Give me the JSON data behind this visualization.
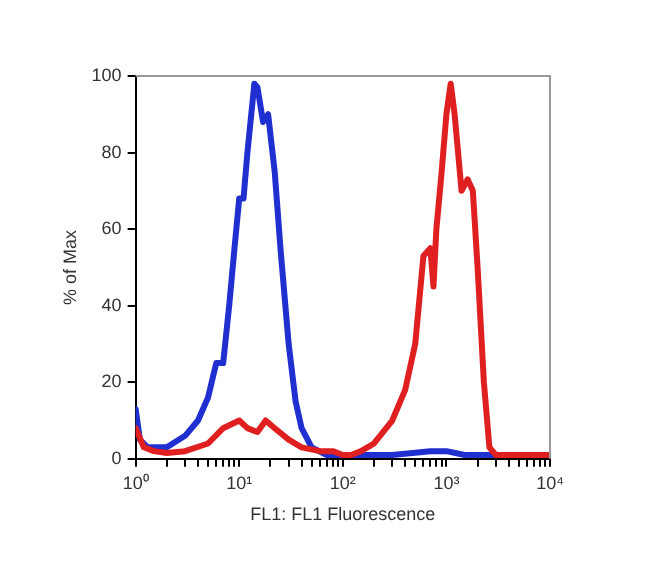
{
  "chart_data": {
    "type": "line",
    "xlabel": "FL1: FL1 Fluorescence",
    "ylabel": "% of Max",
    "log": "x",
    "grid": false,
    "legend": false,
    "marker": "none",
    "line_style": "solid",
    "xlim": [
      1,
      10000
    ],
    "ylim": [
      0,
      100
    ],
    "xticks": [
      {
        "value": 1,
        "label": "10⁰"
      },
      {
        "value": 2,
        "label": null
      },
      {
        "value": 3,
        "label": null
      },
      {
        "value": 4,
        "label": null
      },
      {
        "value": 5,
        "label": null
      },
      {
        "value": 6,
        "label": null
      },
      {
        "value": 7,
        "label": null
      },
      {
        "value": 8,
        "label": null
      },
      {
        "value": 9,
        "label": null
      },
      {
        "value": 10,
        "label": "10¹"
      },
      {
        "value": 20,
        "label": null
      },
      {
        "value": 30,
        "label": null
      },
      {
        "value": 40,
        "label": null
      },
      {
        "value": 50,
        "label": null
      },
      {
        "value": 60,
        "label": null
      },
      {
        "value": 70,
        "label": null
      },
      {
        "value": 80,
        "label": null
      },
      {
        "value": 90,
        "label": null
      },
      {
        "value": 100,
        "label": "10²"
      },
      {
        "value": 200,
        "label": null
      },
      {
        "value": 300,
        "label": null
      },
      {
        "value": 400,
        "label": null
      },
      {
        "value": 500,
        "label": null
      },
      {
        "value": 600,
        "label": null
      },
      {
        "value": 700,
        "label": null
      },
      {
        "value": 800,
        "label": null
      },
      {
        "value": 900,
        "label": null
      },
      {
        "value": 1000,
        "label": "10³"
      },
      {
        "value": 2000,
        "label": null
      },
      {
        "value": 3000,
        "label": null
      },
      {
        "value": 4000,
        "label": null
      },
      {
        "value": 5000,
        "label": null
      },
      {
        "value": 6000,
        "label": null
      },
      {
        "value": 7000,
        "label": null
      },
      {
        "value": 8000,
        "label": null
      },
      {
        "value": 9000,
        "label": null
      },
      {
        "value": 10000,
        "label": "10⁴"
      }
    ],
    "yticks": [
      0,
      20,
      40,
      60,
      80,
      100
    ],
    "series": [
      {
        "color": "#e02020",
        "x": [
          1,
          1.2,
          1.5,
          2,
          3,
          5,
          7,
          10,
          12,
          15,
          18,
          22,
          30,
          40,
          60,
          80,
          100,
          120,
          150,
          200,
          300,
          400,
          500,
          600,
          700,
          750,
          800,
          900,
          1000,
          1100,
          1200,
          1400,
          1600,
          1800,
          2000,
          2300,
          2600,
          3000,
          10000
        ],
        "values": [
          8,
          3,
          2,
          1.5,
          2,
          4,
          8,
          10,
          8,
          7,
          10,
          8,
          5,
          3,
          2,
          2,
          1,
          1,
          2,
          4,
          10,
          18,
          30,
          53,
          55,
          45,
          60,
          75,
          90,
          98,
          90,
          70,
          73,
          70,
          50,
          20,
          3,
          1,
          1
        ]
      },
      {
        "color": "#1f2fd0",
        "x": [
          1,
          1.1,
          1.3,
          2,
          3,
          4,
          5,
          6,
          7,
          8,
          9,
          10,
          11,
          12,
          14,
          15,
          17,
          19,
          22,
          25,
          30,
          35,
          40,
          50,
          70,
          100,
          300,
          700,
          1000,
          1500,
          3000,
          10000
        ],
        "values": [
          13,
          5,
          3,
          3,
          6,
          10,
          16,
          25,
          25,
          40,
          55,
          68,
          68,
          80,
          98,
          97,
          88,
          90,
          75,
          55,
          30,
          15,
          8,
          3,
          1,
          1,
          1,
          2,
          2,
          1,
          1,
          1
        ]
      }
    ]
  }
}
